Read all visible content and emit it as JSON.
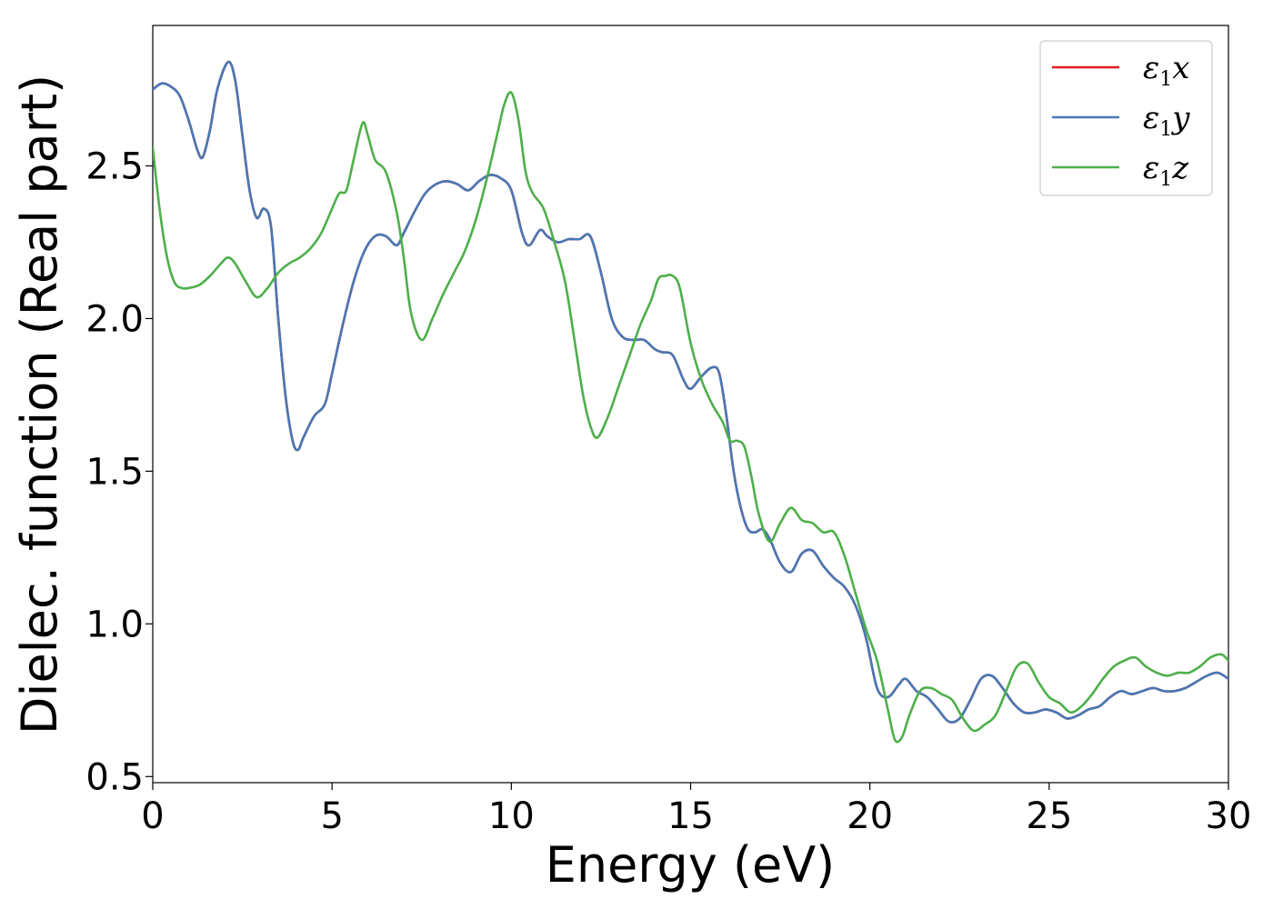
{
  "chart_data": {
    "type": "line",
    "title": "",
    "xlabel": "Energy (eV)",
    "ylabel": "Dielec. function (Real part)",
    "xlim": [
      0,
      30
    ],
    "ylim": [
      0.48,
      2.96
    ],
    "xticks": [
      0,
      5,
      10,
      15,
      20,
      25,
      30
    ],
    "xtick_labels": [
      "0",
      "5",
      "10",
      "15",
      "20",
      "25",
      "30"
    ],
    "yticks": [
      0.5,
      1.0,
      1.5,
      2.0,
      2.5
    ],
    "ytick_labels": [
      "0.5",
      "1.0",
      "1.5",
      "2.0",
      "2.5"
    ],
    "grid": false,
    "legend_position": "top-right",
    "colors": {
      "x": "#e41a1c",
      "y": "#4878b4",
      "z": "#4daf4a"
    },
    "series": [
      {
        "name": "ε₁x",
        "label_base": "ε",
        "label_sub": "1",
        "label_suffix": "x",
        "color": "#e41a1c",
        "x": [
          0,
          0.25,
          0.5,
          0.75,
          1.0,
          1.25,
          1.4,
          1.6,
          1.8,
          2.1,
          2.3,
          2.5,
          2.7,
          2.9,
          3.1,
          3.3,
          3.5,
          3.7,
          3.9,
          4.05,
          4.2,
          4.5,
          4.8,
          5.0,
          5.3,
          5.6,
          5.9,
          6.2,
          6.5,
          6.8,
          7.0,
          7.3,
          7.6,
          7.9,
          8.2,
          8.5,
          8.8,
          9.1,
          9.4,
          9.7,
          10.0,
          10.3,
          10.5,
          10.8,
          11.0,
          11.3,
          11.6,
          11.9,
          12.2,
          12.5,
          12.8,
          13.1,
          13.4,
          13.7,
          14.0,
          14.2,
          14.5,
          14.8,
          15.0,
          15.3,
          15.6,
          15.8,
          16.0,
          16.2,
          16.4,
          16.6,
          16.8,
          17.0,
          17.2,
          17.5,
          17.8,
          18.1,
          18.4,
          18.7,
          19.0,
          19.3,
          19.6,
          19.9,
          20.2,
          20.5,
          20.8,
          21.0,
          21.3,
          21.6,
          21.9,
          22.2,
          22.5,
          22.8,
          23.1,
          23.4,
          23.7,
          24.0,
          24.3,
          24.6,
          24.9,
          25.2,
          25.5,
          25.8,
          26.1,
          26.4,
          26.7,
          27.0,
          27.3,
          27.6,
          27.9,
          28.2,
          28.5,
          28.8,
          29.1,
          29.4,
          29.7,
          30.0
        ],
        "y": [
          2.75,
          2.77,
          2.76,
          2.73,
          2.65,
          2.55,
          2.53,
          2.62,
          2.75,
          2.84,
          2.78,
          2.6,
          2.42,
          2.33,
          2.36,
          2.3,
          2.0,
          1.75,
          1.6,
          1.57,
          1.61,
          1.68,
          1.72,
          1.82,
          1.98,
          2.12,
          2.22,
          2.27,
          2.27,
          2.24,
          2.28,
          2.35,
          2.41,
          2.44,
          2.45,
          2.44,
          2.42,
          2.45,
          2.47,
          2.46,
          2.42,
          2.28,
          2.24,
          2.29,
          2.27,
          2.25,
          2.26,
          2.26,
          2.27,
          2.15,
          2.0,
          1.94,
          1.93,
          1.93,
          1.9,
          1.89,
          1.88,
          1.8,
          1.77,
          1.81,
          1.84,
          1.82,
          1.68,
          1.5,
          1.38,
          1.31,
          1.3,
          1.31,
          1.28,
          1.2,
          1.17,
          1.23,
          1.24,
          1.19,
          1.15,
          1.12,
          1.06,
          0.95,
          0.79,
          0.76,
          0.8,
          0.82,
          0.78,
          0.76,
          0.72,
          0.68,
          0.69,
          0.75,
          0.82,
          0.83,
          0.79,
          0.74,
          0.71,
          0.71,
          0.72,
          0.71,
          0.69,
          0.7,
          0.72,
          0.73,
          0.76,
          0.78,
          0.77,
          0.78,
          0.79,
          0.78,
          0.78,
          0.79,
          0.81,
          0.83,
          0.84,
          0.82
        ]
      },
      {
        "name": "ε₁y",
        "label_base": "ε",
        "label_sub": "1",
        "label_suffix": "y",
        "color": "#4878b4",
        "x": [
          0,
          0.25,
          0.5,
          0.75,
          1.0,
          1.25,
          1.4,
          1.6,
          1.8,
          2.1,
          2.3,
          2.5,
          2.7,
          2.9,
          3.1,
          3.3,
          3.5,
          3.7,
          3.9,
          4.05,
          4.2,
          4.5,
          4.8,
          5.0,
          5.3,
          5.6,
          5.9,
          6.2,
          6.5,
          6.8,
          7.0,
          7.3,
          7.6,
          7.9,
          8.2,
          8.5,
          8.8,
          9.1,
          9.4,
          9.7,
          10.0,
          10.3,
          10.5,
          10.8,
          11.0,
          11.3,
          11.6,
          11.9,
          12.2,
          12.5,
          12.8,
          13.1,
          13.4,
          13.7,
          14.0,
          14.2,
          14.5,
          14.8,
          15.0,
          15.3,
          15.6,
          15.8,
          16.0,
          16.2,
          16.4,
          16.6,
          16.8,
          17.0,
          17.2,
          17.5,
          17.8,
          18.1,
          18.4,
          18.7,
          19.0,
          19.3,
          19.6,
          19.9,
          20.2,
          20.5,
          20.8,
          21.0,
          21.3,
          21.6,
          21.9,
          22.2,
          22.5,
          22.8,
          23.1,
          23.4,
          23.7,
          24.0,
          24.3,
          24.6,
          24.9,
          25.2,
          25.5,
          25.8,
          26.1,
          26.4,
          26.7,
          27.0,
          27.3,
          27.6,
          27.9,
          28.2,
          28.5,
          28.8,
          29.1,
          29.4,
          29.7,
          30.0
        ],
        "y": [
          2.75,
          2.77,
          2.76,
          2.73,
          2.65,
          2.55,
          2.53,
          2.62,
          2.75,
          2.84,
          2.78,
          2.6,
          2.42,
          2.33,
          2.36,
          2.3,
          2.0,
          1.75,
          1.6,
          1.57,
          1.61,
          1.68,
          1.72,
          1.82,
          1.98,
          2.12,
          2.22,
          2.27,
          2.27,
          2.24,
          2.28,
          2.35,
          2.41,
          2.44,
          2.45,
          2.44,
          2.42,
          2.45,
          2.47,
          2.46,
          2.42,
          2.28,
          2.24,
          2.29,
          2.27,
          2.25,
          2.26,
          2.26,
          2.27,
          2.15,
          2.0,
          1.94,
          1.93,
          1.93,
          1.9,
          1.89,
          1.88,
          1.8,
          1.77,
          1.81,
          1.84,
          1.82,
          1.68,
          1.5,
          1.38,
          1.31,
          1.3,
          1.31,
          1.28,
          1.2,
          1.17,
          1.23,
          1.24,
          1.19,
          1.15,
          1.12,
          1.06,
          0.95,
          0.79,
          0.76,
          0.8,
          0.82,
          0.78,
          0.76,
          0.72,
          0.68,
          0.69,
          0.75,
          0.82,
          0.83,
          0.79,
          0.74,
          0.71,
          0.71,
          0.72,
          0.71,
          0.69,
          0.7,
          0.72,
          0.73,
          0.76,
          0.78,
          0.77,
          0.78,
          0.79,
          0.78,
          0.78,
          0.79,
          0.81,
          0.83,
          0.84,
          0.82
        ]
      },
      {
        "name": "ε₁z",
        "label_base": "ε",
        "label_sub": "1",
        "label_suffix": "z",
        "color": "#4daf4a",
        "x": [
          0,
          0.2,
          0.4,
          0.6,
          0.8,
          1.0,
          1.3,
          1.6,
          1.9,
          2.1,
          2.3,
          2.6,
          2.9,
          3.2,
          3.5,
          3.8,
          4.1,
          4.4,
          4.7,
          5.0,
          5.2,
          5.4,
          5.6,
          5.85,
          6.0,
          6.2,
          6.5,
          6.8,
          7.0,
          7.2,
          7.5,
          7.8,
          8.1,
          8.4,
          8.7,
          9.0,
          9.3,
          9.6,
          9.8,
          10.0,
          10.2,
          10.4,
          10.6,
          10.9,
          11.2,
          11.5,
          11.8,
          12.0,
          12.2,
          12.4,
          12.7,
          13.0,
          13.3,
          13.6,
          13.9,
          14.1,
          14.3,
          14.5,
          14.7,
          15.0,
          15.3,
          15.6,
          15.9,
          16.1,
          16.3,
          16.5,
          16.7,
          16.9,
          17.2,
          17.5,
          17.8,
          18.1,
          18.4,
          18.7,
          19.0,
          19.3,
          19.6,
          19.9,
          20.2,
          20.5,
          20.7,
          20.9,
          21.1,
          21.4,
          21.7,
          22.0,
          22.3,
          22.6,
          22.9,
          23.2,
          23.5,
          23.8,
          24.1,
          24.4,
          24.7,
          25.0,
          25.3,
          25.6,
          25.9,
          26.2,
          26.5,
          26.8,
          27.1,
          27.4,
          27.7,
          28.0,
          28.3,
          28.6,
          28.9,
          29.2,
          29.5,
          29.8,
          30.0
        ],
        "y": [
          2.56,
          2.35,
          2.2,
          2.12,
          2.1,
          2.1,
          2.11,
          2.14,
          2.18,
          2.2,
          2.18,
          2.12,
          2.07,
          2.1,
          2.15,
          2.18,
          2.2,
          2.23,
          2.28,
          2.36,
          2.41,
          2.42,
          2.52,
          2.64,
          2.6,
          2.52,
          2.48,
          2.35,
          2.2,
          2.02,
          1.93,
          2.0,
          2.08,
          2.15,
          2.22,
          2.32,
          2.45,
          2.6,
          2.7,
          2.74,
          2.65,
          2.48,
          2.41,
          2.36,
          2.25,
          2.12,
          1.9,
          1.75,
          1.65,
          1.61,
          1.68,
          1.78,
          1.88,
          1.98,
          2.06,
          2.13,
          2.14,
          2.14,
          2.1,
          1.92,
          1.8,
          1.72,
          1.66,
          1.6,
          1.6,
          1.58,
          1.48,
          1.36,
          1.27,
          1.33,
          1.38,
          1.34,
          1.33,
          1.3,
          1.3,
          1.22,
          1.1,
          0.98,
          0.88,
          0.72,
          0.62,
          0.63,
          0.7,
          0.78,
          0.79,
          0.77,
          0.75,
          0.69,
          0.65,
          0.67,
          0.7,
          0.78,
          0.86,
          0.87,
          0.81,
          0.76,
          0.74,
          0.71,
          0.73,
          0.77,
          0.82,
          0.86,
          0.88,
          0.89,
          0.86,
          0.84,
          0.83,
          0.84,
          0.84,
          0.86,
          0.89,
          0.9,
          0.88
        ]
      }
    ]
  }
}
